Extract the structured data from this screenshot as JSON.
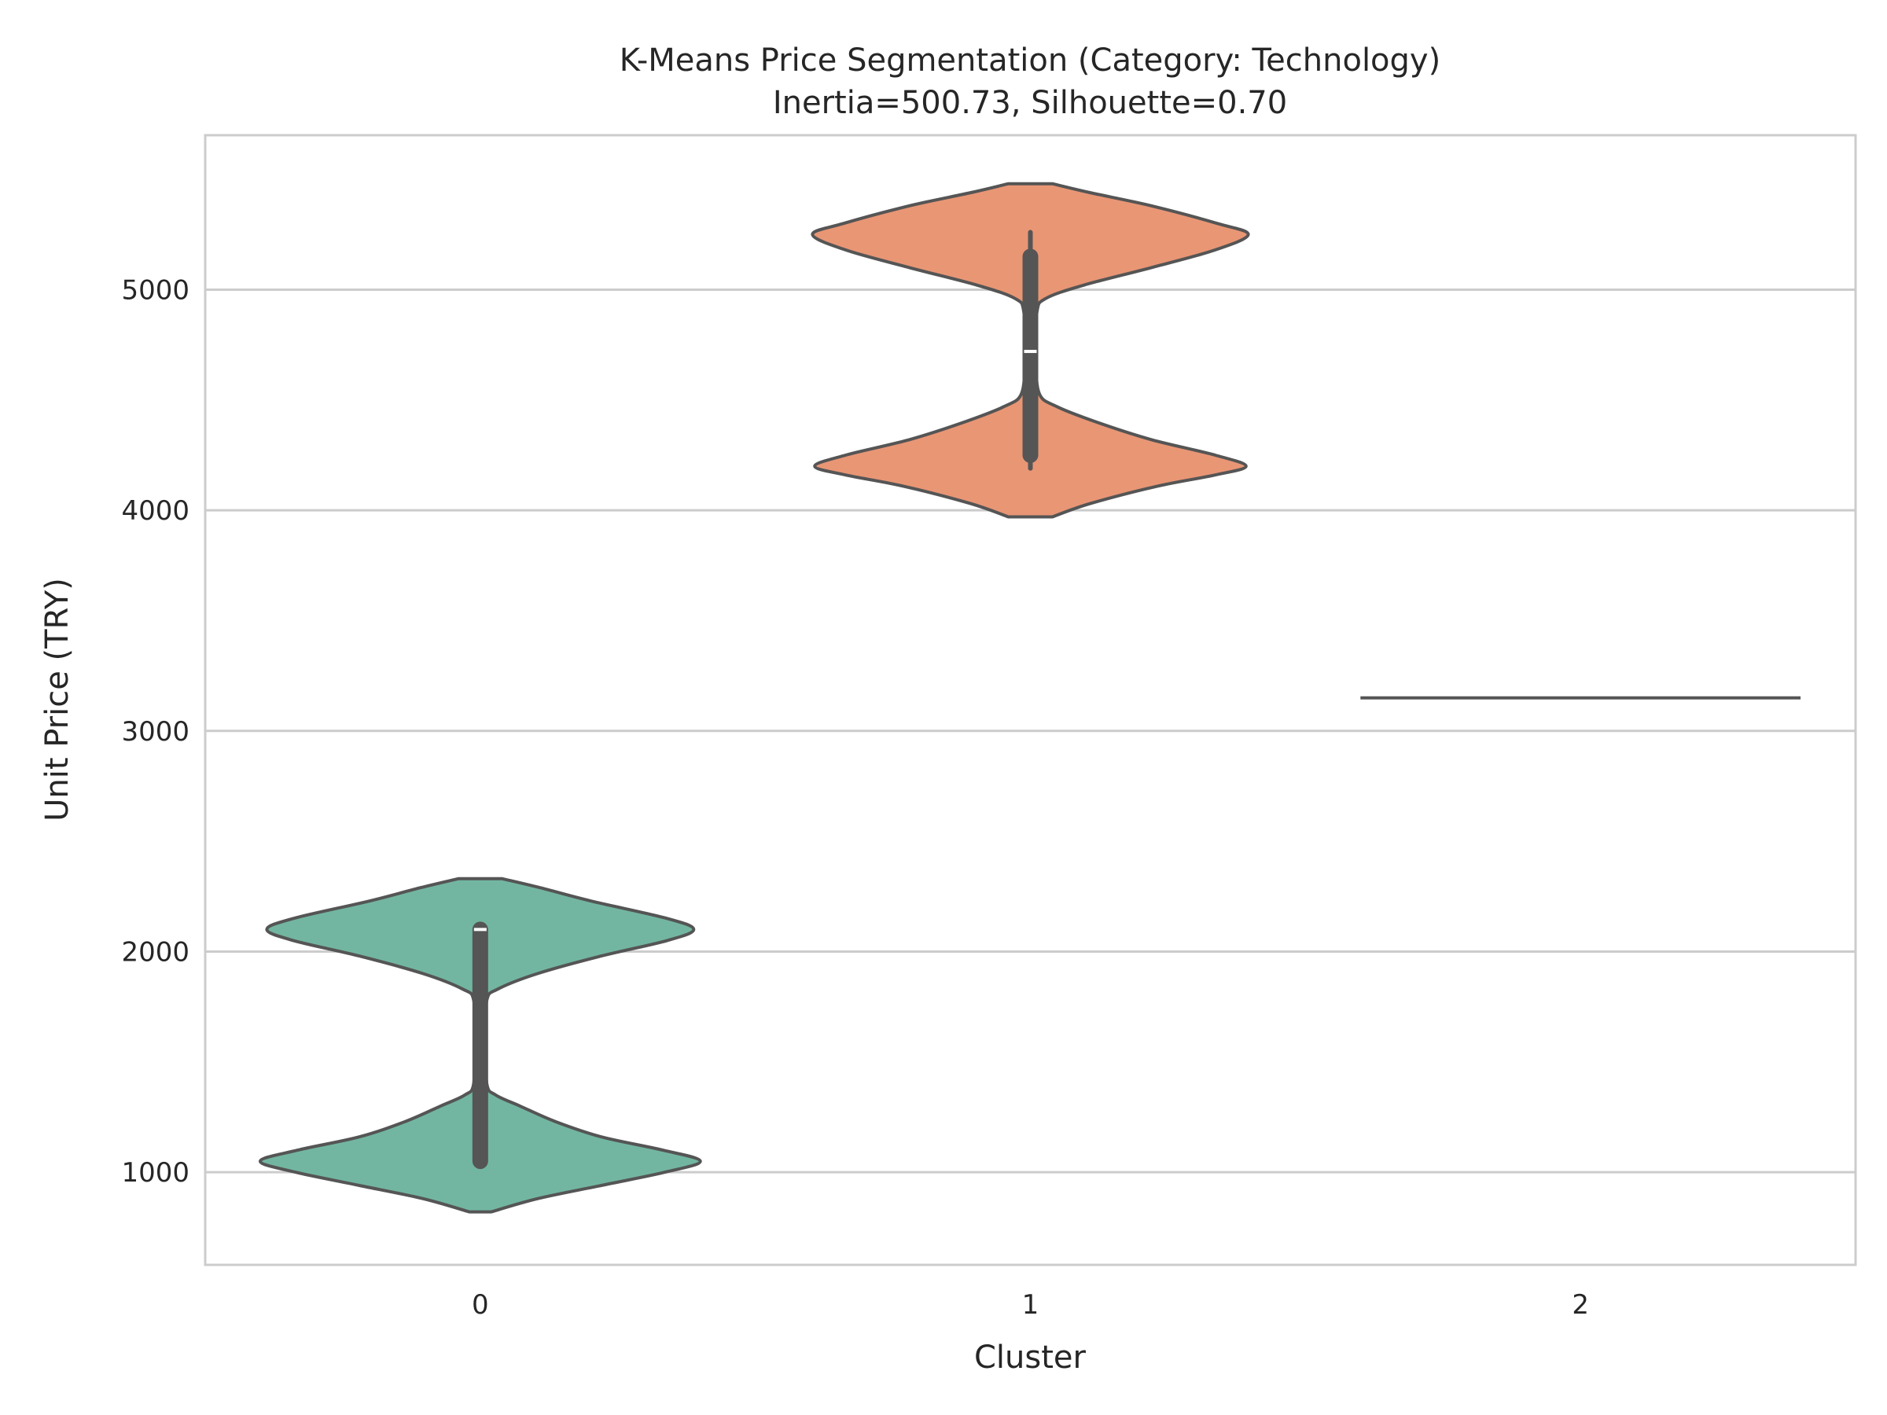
{
  "chart_data": {
    "type": "violin",
    "title": "K-Means Price Segmentation (Category: Technology)",
    "subtitle": "Inertia=500.73, Silhouette=0.70",
    "xlabel": "Cluster",
    "ylabel": "Unit Price (TRY)",
    "categories": [
      "0",
      "1",
      "2"
    ],
    "ylim": [
      580,
      5700
    ],
    "yticks": [
      1000,
      2000,
      3000,
      4000,
      5000
    ],
    "grid": true,
    "colors": [
      "#72b6a1",
      "#e99675",
      "#72b6a1"
    ],
    "outline_color": "#555555",
    "violins": [
      {
        "cluster": "0",
        "values": [
          1050,
          2100
        ],
        "range": [
          820,
          2330
        ],
        "profile": [
          [
            820,
            0.05
          ],
          [
            880,
            0.26
          ],
          [
            940,
            0.55
          ],
          [
            1000,
            0.84
          ],
          [
            1050,
            1.0
          ],
          [
            1100,
            0.83
          ],
          [
            1160,
            0.55
          ],
          [
            1230,
            0.34
          ],
          [
            1300,
            0.18
          ],
          [
            1350,
            0.07
          ],
          [
            1400,
            0.03
          ],
          [
            1600,
            0.025
          ],
          [
            1780,
            0.03
          ],
          [
            1830,
            0.08
          ],
          [
            1900,
            0.26
          ],
          [
            1980,
            0.55
          ],
          [
            2050,
            0.85
          ],
          [
            2100,
            0.97
          ],
          [
            2150,
            0.85
          ],
          [
            2230,
            0.5
          ],
          [
            2290,
            0.27
          ],
          [
            2330,
            0.1
          ]
        ],
        "box_q1": 1050,
        "box_q3": 2100,
        "whisker_low": 1030,
        "whisker_high": 2110,
        "median": 2100
      },
      {
        "cluster": "1",
        "values": [
          4200,
          5250
        ],
        "range": [
          3970,
          5480
        ],
        "profile": [
          [
            3970,
            0.1
          ],
          [
            4030,
            0.27
          ],
          [
            4110,
            0.58
          ],
          [
            4160,
            0.84
          ],
          [
            4200,
            0.98
          ],
          [
            4250,
            0.84
          ],
          [
            4320,
            0.55
          ],
          [
            4400,
            0.3
          ],
          [
            4470,
            0.12
          ],
          [
            4530,
            0.04
          ],
          [
            4700,
            0.025
          ],
          [
            4900,
            0.03
          ],
          [
            4960,
            0.07
          ],
          [
            5020,
            0.24
          ],
          [
            5100,
            0.55
          ],
          [
            5180,
            0.84
          ],
          [
            5250,
            0.99
          ],
          [
            5300,
            0.85
          ],
          [
            5380,
            0.55
          ],
          [
            5440,
            0.27
          ],
          [
            5480,
            0.1
          ]
        ],
        "box_q1": 4250,
        "box_q3": 5150,
        "whisker_low": 4190,
        "whisker_high": 5260,
        "median": 4720
      },
      {
        "cluster": "2",
        "values": [
          3150
        ],
        "single_value": 3150
      }
    ]
  }
}
